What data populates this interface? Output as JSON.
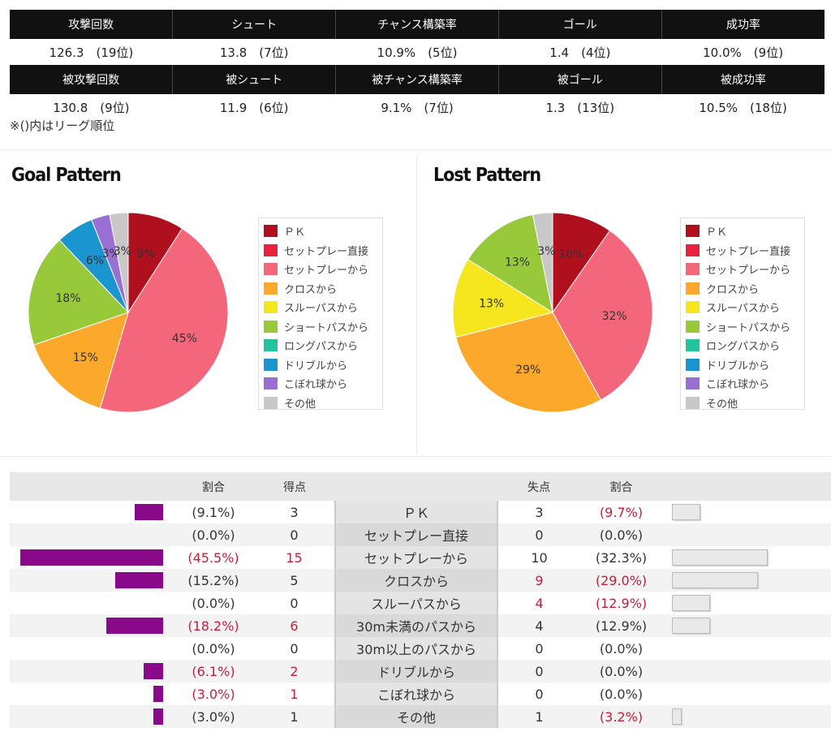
{
  "stats": {
    "headers1": [
      "攻撃回数",
      "シュート",
      "チャンス構築率",
      "ゴール",
      "成功率"
    ],
    "values1": [
      "126.3　(19位)",
      "13.8　(7位)",
      "10.9%　(5位)",
      "1.4　(4位)",
      "10.0%　(9位)"
    ],
    "headers2": [
      "被攻撃回数",
      "被シュート",
      "被チャンス構築率",
      "被ゴール",
      "被成功率"
    ],
    "values2": [
      "130.8　(9位)",
      "11.9　(6位)",
      "9.1%　(7位)",
      "1.3　(13位)",
      "10.5%　(18位)"
    ],
    "note": "※()内はリーグ順位"
  },
  "legend_labels": [
    "ＰＫ",
    "セットプレー直接",
    "セットプレーから",
    "クロスから",
    "スルーパスから",
    "ショートパスから",
    "ロングパスから",
    "ドリブルから",
    "こぼれ球から",
    "その他"
  ],
  "legend_colors": [
    "#b0101e",
    "#e8213c",
    "#f4667a",
    "#fba82b",
    "#f6e61e",
    "#97c93a",
    "#22c59b",
    "#1a95cf",
    "#9a6fd3",
    "#c8c8c8"
  ],
  "chart_data": [
    {
      "type": "pie",
      "title": "Goal Pattern",
      "labels": [
        "ＰＫ",
        "セットプレー直接",
        "セットプレーから",
        "クロスから",
        "スルーパスから",
        "ショートパスから",
        "ロングパスから",
        "ドリブルから",
        "こぼれ球から",
        "その他"
      ],
      "values": [
        9.1,
        0,
        45.5,
        15.2,
        0,
        18.2,
        0,
        6.1,
        3.0,
        3.0
      ],
      "slice_labels": [
        "9%",
        "",
        "45%",
        "15%",
        "",
        "18%",
        "",
        "6%",
        "3%",
        "3%"
      ]
    },
    {
      "type": "pie",
      "title": "Lost Pattern",
      "labels": [
        "ＰＫ",
        "セットプレー直接",
        "セットプレーから",
        "クロスから",
        "スルーパスから",
        "ショートパスから",
        "ロングパスから",
        "ドリブルから",
        "こぼれ球から",
        "その他"
      ],
      "values": [
        9.7,
        0,
        32.3,
        29.0,
        12.9,
        12.9,
        0,
        0,
        0,
        3.2
      ],
      "slice_labels": [
        "10%",
        "",
        "32%",
        "29%",
        "13%",
        "13%",
        "",
        "",
        "",
        "3%"
      ]
    },
    {
      "type": "table",
      "headers": [
        "割合",
        "得点",
        "",
        "失点",
        "割合"
      ],
      "rows": [
        {
          "label": "ＰＫ",
          "for_pct": 9.1,
          "for_pct_text": "(9.1%)",
          "for": "3",
          "for_hl": false,
          "against": "3",
          "against_hl": false,
          "against_pct": 9.7,
          "against_pct_text": "(9.7%)",
          "against_pct_hl": true
        },
        {
          "label": "セットプレー直接",
          "for_pct": 0,
          "for_pct_text": "(0.0%)",
          "for": "0",
          "for_hl": false,
          "against": "0",
          "against_hl": false,
          "against_pct": 0,
          "against_pct_text": "(0.0%)",
          "against_pct_hl": false
        },
        {
          "label": "セットプレーから",
          "for_pct": 45.5,
          "for_pct_text": "(45.5%)",
          "for_pct_hl": true,
          "for": "15",
          "for_hl": true,
          "against": "10",
          "against_hl": false,
          "against_pct": 32.3,
          "against_pct_text": "(32.3%)",
          "against_pct_hl": false
        },
        {
          "label": "クロスから",
          "for_pct": 15.2,
          "for_pct_text": "(15.2%)",
          "for": "5",
          "for_hl": false,
          "against": "9",
          "against_hl": true,
          "against_pct": 29.0,
          "against_pct_text": "(29.0%)",
          "against_pct_hl": true
        },
        {
          "label": "スルーパスから",
          "for_pct": 0,
          "for_pct_text": "(0.0%)",
          "for": "0",
          "for_hl": false,
          "against": "4",
          "against_hl": true,
          "against_pct": 12.9,
          "against_pct_text": "(12.9%)",
          "against_pct_hl": true
        },
        {
          "label": "30m未満のパスから",
          "for_pct": 18.2,
          "for_pct_text": "(18.2%)",
          "for_pct_hl": true,
          "for": "6",
          "for_hl": true,
          "against": "4",
          "against_hl": false,
          "against_pct": 12.9,
          "against_pct_text": "(12.9%)",
          "against_pct_hl": false
        },
        {
          "label": "30m以上のパスから",
          "for_pct": 0,
          "for_pct_text": "(0.0%)",
          "for": "0",
          "for_hl": false,
          "against": "0",
          "against_hl": false,
          "against_pct": 0,
          "against_pct_text": "(0.0%)",
          "against_pct_hl": false
        },
        {
          "label": "ドリブルから",
          "for_pct": 6.1,
          "for_pct_text": "(6.1%)",
          "for_pct_hl": true,
          "for": "2",
          "for_hl": true,
          "against": "0",
          "against_hl": false,
          "against_pct": 0,
          "against_pct_text": "(0.0%)",
          "against_pct_hl": false
        },
        {
          "label": "こぼれ球から",
          "for_pct": 3.0,
          "for_pct_text": "(3.0%)",
          "for_pct_hl": true,
          "for": "1",
          "for_hl": true,
          "against": "0",
          "against_hl": false,
          "against_pct": 0,
          "against_pct_text": "(0.0%)",
          "against_pct_hl": false
        },
        {
          "label": "その他",
          "for_pct": 3.0,
          "for_pct_text": "(3.0%)",
          "for_pct_hl": false,
          "for": "1",
          "for_hl": false,
          "against": "1",
          "against_hl": false,
          "against_pct": 3.2,
          "against_pct_text": "(3.2%)",
          "against_pct_hl": true
        }
      ]
    }
  ]
}
